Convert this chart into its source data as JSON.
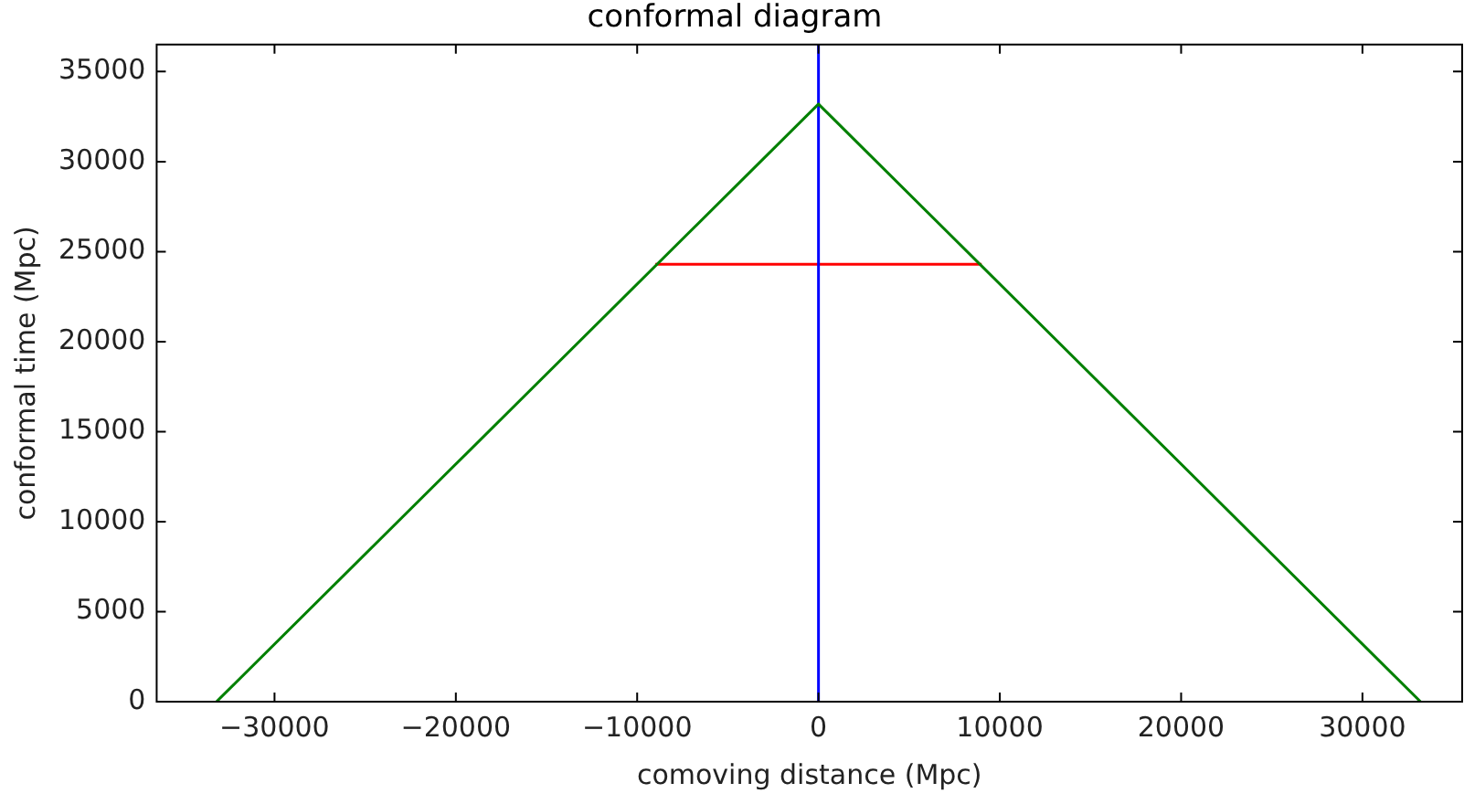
{
  "chart_data": {
    "type": "line",
    "title": "conformal diagram",
    "xlabel": "comoving distance (Mpc)",
    "ylabel": "conformal time (Mpc)",
    "series": [
      {
        "color": "#008000",
        "x": [
          -33200,
          0,
          33200
        ],
        "values": [
          0,
          33200,
          0
        ]
      },
      {
        "color": "#0000ff",
        "x": [
          0,
          0
        ],
        "values": [
          0,
          36500
        ]
      },
      {
        "color": "#ff0000",
        "x": [
          -9000,
          9000
        ],
        "values": [
          24300,
          24300
        ]
      }
    ],
    "xlim": [
      -36500,
      35500
    ],
    "ylim": [
      0,
      36500
    ],
    "xticks": [
      {
        "value": -30000,
        "label": "−30000"
      },
      {
        "value": -20000,
        "label": "−20000"
      },
      {
        "value": -10000,
        "label": "−10000"
      },
      0,
      10000,
      20000,
      30000
    ],
    "yticks": [
      0,
      5000,
      10000,
      15000,
      20000,
      25000,
      30000,
      35000
    ],
    "grid": false,
    "legend": false,
    "marker": "none",
    "line_style": "solid"
  }
}
